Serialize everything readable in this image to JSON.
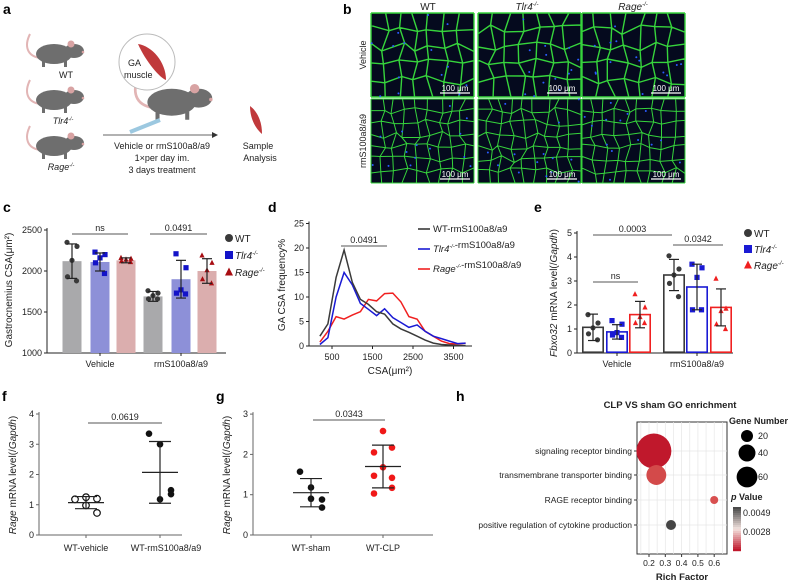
{
  "panel_labels": {
    "a": "a",
    "b": "b",
    "c": "c",
    "d": "d",
    "e": "e",
    "f": "f",
    "g": "g",
    "h": "h"
  },
  "panel_a": {
    "mice": [
      {
        "name": "WT",
        "sup": "",
        "italic": false
      },
      {
        "name": "Tlr4",
        "sup": "-/-",
        "italic": true
      },
      {
        "name": "Rage",
        "sup": "-/-",
        "italic": true
      }
    ],
    "muscle_label": [
      "GA",
      "muscle"
    ],
    "treatment": [
      "Vehicle or rmS100a8/a9",
      "1×per day im.",
      "3 days treatment"
    ],
    "outcome": [
      "Sample",
      "Analysis"
    ],
    "colors": {
      "mouse": "#6e6e6e",
      "muscle": "#c0393b",
      "ear": "#d8a3a3"
    }
  },
  "panel_b": {
    "columns": [
      {
        "name": "WT",
        "sup": "",
        "italic": false
      },
      {
        "name": "Tlr4",
        "sup": "-/-",
        "italic": true
      },
      {
        "name": "Rage",
        "sup": "-/-",
        "italic": true
      }
    ],
    "rows": [
      "Vehicle",
      "rmS100a8/a9"
    ],
    "scale_bar": "100 μm",
    "colors": {
      "membrane": "#36d43c",
      "nuclei": "#2a5cff",
      "background": "#050a1e"
    }
  },
  "chart_data": [
    {
      "panel": "c",
      "type": "bar",
      "ylabel": "Gastrocnemius CSA(μm²)",
      "xlabel": "",
      "ylim": [
        1000,
        2500
      ],
      "yticks": [
        1000,
        1500,
        2000,
        2500
      ],
      "categories": [
        "Vehicle",
        "rmS100a8/a9"
      ],
      "legend": "right",
      "series": [
        {
          "name": "WT",
          "sup": "",
          "italic": false,
          "marker": "circle",
          "color": "#3a3a3a",
          "fill": "#a9a9ab",
          "groups": [
            {
              "mean": 2120,
              "sd": 210,
              "points": [
                2350,
                2300,
                2130,
                1930,
                1880
              ]
            },
            {
              "mean": 1690,
              "sd": 60,
              "points": [
                1760,
                1730,
                1700,
                1660,
                1660
              ]
            }
          ]
        },
        {
          "name": "Tlr4",
          "sup": "-/-",
          "italic": true,
          "marker": "square",
          "color": "#1313c8",
          "fill": "#8d90d8",
          "groups": [
            {
              "mean": 2110,
              "sd": 110,
              "points": [
                2230,
                2200,
                2160,
                2100,
                1970
              ]
            },
            {
              "mean": 1900,
              "sd": 230,
              "points": [
                2210,
                2040,
                1770,
                1730,
                1720
              ]
            }
          ]
        },
        {
          "name": "Rage",
          "sup": "-/-",
          "italic": true,
          "marker": "triangle",
          "color": "#a80d12",
          "fill": "#dbaeae",
          "groups": [
            {
              "mean": 2130,
              "sd": 30,
              "points": [
                2160,
                2150,
                2140,
                2120,
                2110
              ]
            },
            {
              "mean": 2000,
              "sd": 150,
              "points": [
                2190,
                2100,
                2010,
                1900,
                1850
              ]
            }
          ]
        }
      ],
      "annotations": [
        {
          "text": "ns",
          "between": "Vehicle WT–Rage"
        },
        {
          "text": "0.0491",
          "between": "rmS100a8/a9 WT–Rage"
        }
      ]
    },
    {
      "panel": "d",
      "type": "line",
      "ylabel": "GA CSA frequency%",
      "xlabel": "CSA(μm²)",
      "xlim": [
        200,
        3800
      ],
      "ylim": [
        0,
        25
      ],
      "xticks": [
        500,
        1500,
        2500,
        3500
      ],
      "yticks": [
        0,
        5,
        10,
        15,
        20,
        25
      ],
      "x": [
        200,
        400,
        600,
        800,
        1000,
        1200,
        1400,
        1600,
        1800,
        2000,
        2200,
        2400,
        2600,
        2800,
        3000,
        3200,
        3400,
        3600,
        3800
      ],
      "legend": "top-right",
      "series": [
        {
          "name": "WT",
          "sup": "",
          "italic": false,
          "suffix": "-rmS100a8/a9",
          "color": "#3a3a3a",
          "values": [
            2,
            4.5,
            14,
            19.6,
            13,
            9.5,
            8.5,
            7,
            6.5,
            4.5,
            3.5,
            2.8,
            2,
            1.2,
            0.6,
            0.3,
            0.2,
            0.1,
            0.1
          ]
        },
        {
          "name": "Tlr4",
          "sup": "-/-",
          "italic": true,
          "suffix": "-rmS100a8/a9",
          "color": "#1a1ad4",
          "values": [
            0.3,
            1.7,
            10,
            15,
            12.5,
            8.7,
            7.5,
            6.2,
            7.6,
            5.8,
            4.8,
            3.8,
            4.3,
            3,
            2,
            1.5,
            1,
            0.5,
            0.6
          ]
        },
        {
          "name": "Rage",
          "sup": "-/-",
          "italic": true,
          "suffix": "-rmS100a8/a9",
          "color": "#f02020",
          "values": [
            0.8,
            3,
            6,
            5.5,
            6.3,
            7,
            9.5,
            9.2,
            10.7,
            10.8,
            9,
            6,
            5.5,
            3,
            2,
            1,
            0.5,
            0.4,
            0.6
          ]
        }
      ],
      "annotations": [
        {
          "text": "0.0491"
        }
      ]
    },
    {
      "panel": "e",
      "type": "bar",
      "ylabel_parts": [
        {
          "t": "Fbxo32",
          "i": true
        },
        {
          "t": " mRNA level(/",
          "i": false
        },
        {
          "t": "Gapdh",
          "i": true
        },
        {
          "t": ")",
          "i": false
        }
      ],
      "ylim": [
        0,
        5
      ],
      "yticks": [
        0,
        1,
        2,
        3,
        4,
        5
      ],
      "categories": [
        "Vehicle",
        "rmS100a8/a9"
      ],
      "legend": "right",
      "series": [
        {
          "name": "WT",
          "sup": "",
          "italic": false,
          "marker": "circle",
          "color": "#3a3a3a",
          "groups": [
            {
              "mean": 1.07,
              "sd": 0.55,
              "points": [
                1.6,
                1.25,
                1.05,
                0.8,
                0.55
              ]
            },
            {
              "mean": 3.25,
              "sd": 0.65,
              "points": [
                4.05,
                3.5,
                3.25,
                2.9,
                2.35
              ]
            }
          ]
        },
        {
          "name": "Tlr4",
          "sup": "-/-",
          "italic": true,
          "marker": "square",
          "color": "#1a1ad4",
          "groups": [
            {
              "mean": 0.88,
              "sd": 0.3,
              "points": [
                1.35,
                1.2,
                0.85,
                0.75,
                0.65
              ]
            },
            {
              "mean": 2.75,
              "sd": 0.95,
              "points": [
                3.7,
                3.55,
                3.15,
                1.8,
                1.8
              ]
            }
          ]
        },
        {
          "name": "Rage",
          "sup": "-/-",
          "italic": true,
          "marker": "triangle",
          "color": "#f02020",
          "groups": [
            {
              "mean": 1.6,
              "sd": 0.55,
              "points": [
                2.45,
                1.9,
                1.5,
                1.25,
                1.25
              ]
            },
            {
              "mean": 1.9,
              "sd": 0.77,
              "points": [
                3.1,
                1.85,
                1.75,
                1.2,
                1.0
              ]
            }
          ]
        }
      ],
      "annotations": [
        {
          "text": "0.0003"
        },
        {
          "text": "0.0342"
        },
        {
          "text": "ns"
        }
      ]
    },
    {
      "panel": "f",
      "type": "scatter",
      "ylabel_parts": [
        {
          "t": "Rage",
          "i": true
        },
        {
          "t": " mRNA level(/",
          "i": false
        },
        {
          "t": "Gapdh",
          "i": true
        },
        {
          "t": ")",
          "i": false
        }
      ],
      "ylim": [
        0,
        4
      ],
      "yticks": [
        0,
        1,
        2,
        3,
        4
      ],
      "categories": [
        "WT-vehicle",
        "WT-rmS100a8/a9"
      ],
      "groups": [
        {
          "mean": 1.07,
          "sd": 0.2,
          "points": [
            1.18,
            1.25,
            1.2,
            0.98,
            0.73
          ],
          "hollow": true,
          "color": "#111111"
        },
        {
          "mean": 2.07,
          "sd": 1.02,
          "points": [
            3.35,
            3.0,
            1.48,
            1.18,
            1.35
          ],
          "hollow": false,
          "color": "#111111"
        }
      ],
      "annotations": [
        {
          "text": "0.0619"
        }
      ]
    },
    {
      "panel": "g",
      "type": "scatter",
      "ylabel_parts": [
        {
          "t": "Rage",
          "i": true
        },
        {
          "t": " mRNA level(/",
          "i": false
        },
        {
          "t": "Gapdh",
          "i": true
        },
        {
          "t": ")",
          "i": false
        }
      ],
      "ylim": [
        0,
        3
      ],
      "yticks": [
        0,
        1,
        2,
        3
      ],
      "categories": [
        "WT-sham",
        "WT-CLP"
      ],
      "groups": [
        {
          "mean": 1.05,
          "sd": 0.35,
          "points": [
            1.57,
            1.18,
            0.88,
            0.9,
            0.68
          ],
          "hollow": false,
          "color": "#111111"
        },
        {
          "mean": 1.7,
          "sd": 0.53,
          "points": [
            2.58,
            2.05,
            2.17,
            1.68,
            1.47,
            1.42,
            1.03,
            1.17
          ],
          "hollow": false,
          "color": "#f01818"
        }
      ],
      "annotations": [
        {
          "text": "0.0343"
        }
      ]
    },
    {
      "panel": "h",
      "type": "scatter",
      "title": "CLP VS sham GO enrichment",
      "xlabel": "Rich Factor",
      "xticks": [
        "0.2",
        "0.3",
        "0.4",
        "0.5",
        "0.6"
      ],
      "xlim": [
        0.13,
        0.68
      ],
      "terms": [
        {
          "label": "signaling receptor binding",
          "rich_factor": 0.23,
          "gene_number": 170,
          "color": "#c0182c"
        },
        {
          "label": "transmembrane transporter binding",
          "rich_factor": 0.245,
          "gene_number": 55,
          "color": "#d34a4a"
        },
        {
          "label": "RAGE receptor binding",
          "rich_factor": 0.6,
          "gene_number": 9,
          "color": "#d85050"
        },
        {
          "label": "positive regulation of cytokine production",
          "rich_factor": 0.335,
          "gene_number": 14,
          "color": "#454545"
        }
      ],
      "size_legend": {
        "title": "Gene Number",
        "values": [
          20,
          40,
          60
        ]
      },
      "color_legend": {
        "title_p": "p",
        "title_rest": " Value",
        "labels": [
          "0.0049",
          "0.0028"
        ],
        "colors": [
          "#4a4a4a",
          "#f3e3df",
          "#c0182c"
        ]
      }
    }
  ]
}
